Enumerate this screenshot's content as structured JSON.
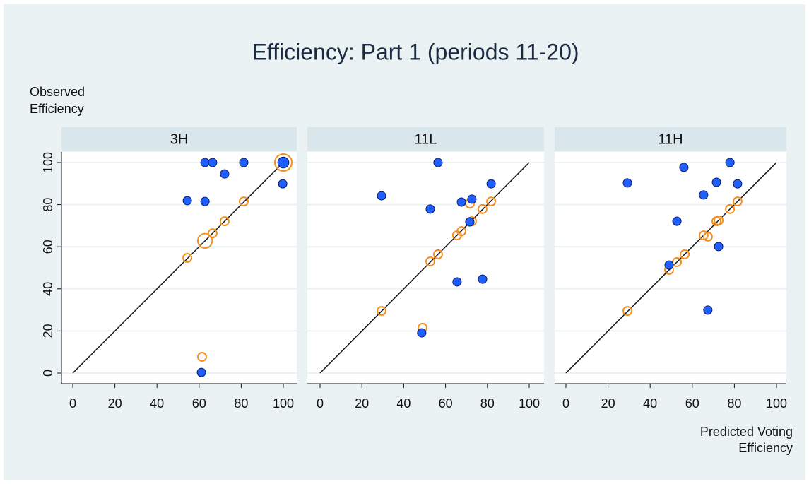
{
  "title": "Efficiency: Part 1 (periods 11-20)",
  "ylabel": [
    "Observed",
    "Efficiency"
  ],
  "xlabel": [
    "Predicted Voting",
    "Efficiency"
  ],
  "chart_data": [
    {
      "type": "scatter",
      "title": "3H",
      "xlim": [
        0,
        100
      ],
      "ylim": [
        0,
        100
      ],
      "xticks": [
        0,
        20,
        40,
        60,
        80,
        100
      ],
      "yticks": [
        0,
        20,
        40,
        60,
        80,
        100
      ],
      "grid": true,
      "diagonal": true,
      "show_yticks": true,
      "series": [
        {
          "color": "#f58f1f",
          "hollow": true,
          "x": [
            54.4,
            62.8,
            66.4,
            72.1,
            81.2,
            100,
            61.4
          ],
          "values": [
            54.7,
            62.8,
            66.4,
            72.1,
            81.5,
            100,
            7.7
          ],
          "sizes": [
            1,
            1.7,
            1,
            1,
            1,
            2,
            1
          ]
        },
        {
          "color": "#1f5fff",
          "hollow": false,
          "x": [
            54.4,
            62.8,
            66.4,
            72.1,
            81.2,
            62.8,
            100,
            99.7,
            61.1
          ],
          "values": [
            81.9,
            100,
            100,
            94.6,
            100,
            81.5,
            100,
            89.9,
            0.3
          ],
          "sizes": [
            1,
            1,
            1,
            1,
            1,
            1,
            1.3,
            1,
            1
          ]
        }
      ]
    },
    {
      "type": "scatter",
      "title": "11L",
      "xlim": [
        0,
        100
      ],
      "ylim": [
        0,
        100
      ],
      "xticks": [
        0,
        20,
        40,
        60,
        80,
        100
      ],
      "yticks": [
        0,
        20,
        40,
        60,
        80,
        100
      ],
      "grid": true,
      "diagonal": true,
      "show_yticks": false,
      "series": [
        {
          "color": "#f58f1f",
          "hollow": true,
          "x": [
            29.4,
            52.7,
            56.4,
            65.5,
            67.6,
            72.6,
            71.6,
            77.7,
            81.8,
            49.0
          ],
          "values": [
            29.5,
            53.0,
            56.4,
            65.4,
            67.4,
            72.1,
            80.5,
            77.9,
            81.5,
            21.5
          ],
          "sizes": [
            1,
            1,
            1,
            1,
            1,
            1,
            1,
            1,
            1,
            1
          ]
        },
        {
          "color": "#1f5fff",
          "hollow": false,
          "x": [
            29.4,
            56.4,
            52.7,
            81.8,
            72.6,
            67.6,
            71.6,
            65.5,
            77.7,
            48.6
          ],
          "values": [
            84.2,
            100,
            77.9,
            89.9,
            82.6,
            81.2,
            71.8,
            43.3,
            44.6,
            19.1
          ],
          "sizes": [
            1,
            1,
            1,
            1,
            1,
            1,
            1,
            1,
            1,
            1
          ]
        }
      ]
    },
    {
      "type": "scatter",
      "title": "11H",
      "xlim": [
        0,
        100
      ],
      "ylim": [
        0,
        100
      ],
      "xticks": [
        0,
        20,
        40,
        60,
        80,
        100
      ],
      "yticks": [
        0,
        20,
        40,
        60,
        80,
        100
      ],
      "grid": true,
      "diagonal": true,
      "show_yticks": false,
      "series": [
        {
          "color": "#f58f1f",
          "hollow": true,
          "x": [
            29.2,
            49.0,
            52.7,
            56.4,
            65.4,
            67.4,
            71.5,
            72.5,
            77.9,
            81.5
          ],
          "values": [
            29.5,
            49.0,
            52.7,
            56.4,
            65.4,
            64.8,
            72.1,
            72.5,
            77.9,
            81.5
          ],
          "sizes": [
            1,
            1,
            1,
            1,
            1,
            1,
            1,
            1,
            1,
            1
          ]
        },
        {
          "color": "#1f5fff",
          "hollow": false,
          "x": [
            29.2,
            56.0,
            77.9,
            71.5,
            81.5,
            65.4,
            52.7,
            72.5,
            49.0,
            67.4
          ],
          "values": [
            90.3,
            97.7,
            100,
            90.6,
            89.9,
            84.6,
            72.1,
            60.1,
            51.3,
            29.9
          ],
          "sizes": [
            1,
            1,
            1,
            1,
            1,
            1,
            1,
            1,
            1,
            1
          ]
        }
      ]
    }
  ]
}
